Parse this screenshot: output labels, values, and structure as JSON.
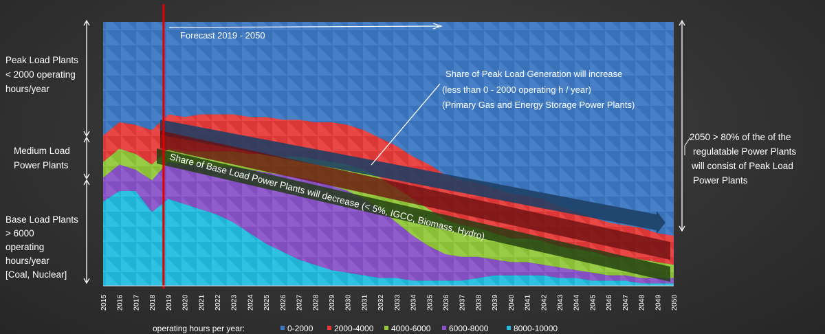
{
  "chart_data": {
    "type": "area",
    "stacked": true,
    "x": [
      "2015",
      "2016",
      "2017",
      "2018",
      "2019",
      "2020",
      "2021",
      "2022",
      "2023",
      "2024",
      "2025",
      "2026",
      "2027",
      "2028",
      "2029",
      "2030",
      "2031",
      "2032",
      "2033",
      "2034",
      "2035",
      "2036",
      "2037",
      "2038",
      "2039",
      "2040",
      "2041",
      "2042",
      "2043",
      "2044",
      "2045",
      "2046",
      "2047",
      "2048",
      "2049",
      "2050"
    ],
    "ylim": [
      0,
      100
    ],
    "series": [
      {
        "name": "8000-10000",
        "color": "#22bde0",
        "values": [
          32,
          36,
          36,
          28,
          33,
          31,
          29,
          27,
          24,
          20,
          16,
          13,
          10,
          8,
          6,
          5,
          4,
          3,
          3,
          2,
          2,
          2,
          2,
          3,
          4,
          4,
          4,
          4,
          3,
          3,
          2,
          2,
          2,
          1,
          1,
          1
        ]
      },
      {
        "name": "6000-8000",
        "color": "#8a52c9",
        "values": [
          9,
          10,
          8,
          12,
          14,
          15,
          17,
          18,
          21,
          24,
          27,
          29,
          31,
          32,
          32,
          31,
          29,
          26,
          21,
          17,
          13,
          10,
          9,
          8,
          6,
          5,
          5,
          4,
          4,
          3,
          3,
          2,
          2,
          2,
          2,
          2
        ]
      },
      {
        "name": "4000-6000",
        "color": "#92c83a",
        "values": [
          6,
          6,
          6,
          6,
          5,
          5,
          5,
          6,
          6,
          6,
          7,
          7,
          8,
          8,
          9,
          10,
          11,
          12,
          13,
          14,
          14,
          13,
          12,
          11,
          10,
          9,
          9,
          9,
          8,
          8,
          8,
          7,
          7,
          7,
          6,
          5
        ]
      },
      {
        "name": "2000-4000",
        "color": "#e83a3a",
        "values": [
          10,
          10,
          11,
          13,
          13,
          13,
          14,
          14,
          14,
          14,
          14,
          14,
          14,
          14,
          15,
          15,
          15,
          15,
          16,
          16,
          17,
          17,
          17,
          17,
          17,
          17,
          16,
          16,
          15,
          14,
          13,
          13,
          12,
          12,
          11,
          11
        ]
      },
      {
        "name": "0-2000",
        "color": "#3d78c4",
        "values": [
          43,
          38,
          39,
          41,
          35,
          36,
          35,
          35,
          35,
          36,
          36,
          37,
          37,
          38,
          38,
          39,
          41,
          44,
          47,
          51,
          54,
          58,
          60,
          61,
          63,
          65,
          66,
          67,
          70,
          72,
          74,
          76,
          77,
          78,
          80,
          81
        ]
      }
    ],
    "forecast_start": "2019",
    "annotations": {
      "forecast": "Forecast 2019 - 2050",
      "peak_line1": "Share of Peak Load Generation will increase",
      "peak_line2": "(less than 0 - 2000 operating h / year)",
      "peak_line3": "(Primary Gas and Energy Storage Power Plants)",
      "base_band": "Share of Base Load Power Plants will decrease (< 5%, IGCC, Biomass, Hydro)"
    },
    "left_labels": {
      "peak": [
        "Peak Load Plants",
        "< 2000 operating",
        "hours/year"
      ],
      "medium": [
        "Medium Load",
        "Power Plants"
      ],
      "base": [
        "Base Load Plants",
        "> 6000",
        "operating",
        "hours/year",
        "[Coal, Nuclear]"
      ]
    },
    "right_label": [
      "2050 > 80% of the of the",
      "regulatable Power Plants",
      "will consist of Peak Load",
      "Power Plants"
    ],
    "legend_title": "operating hours per year:",
    "legend_placement": "bottom"
  }
}
